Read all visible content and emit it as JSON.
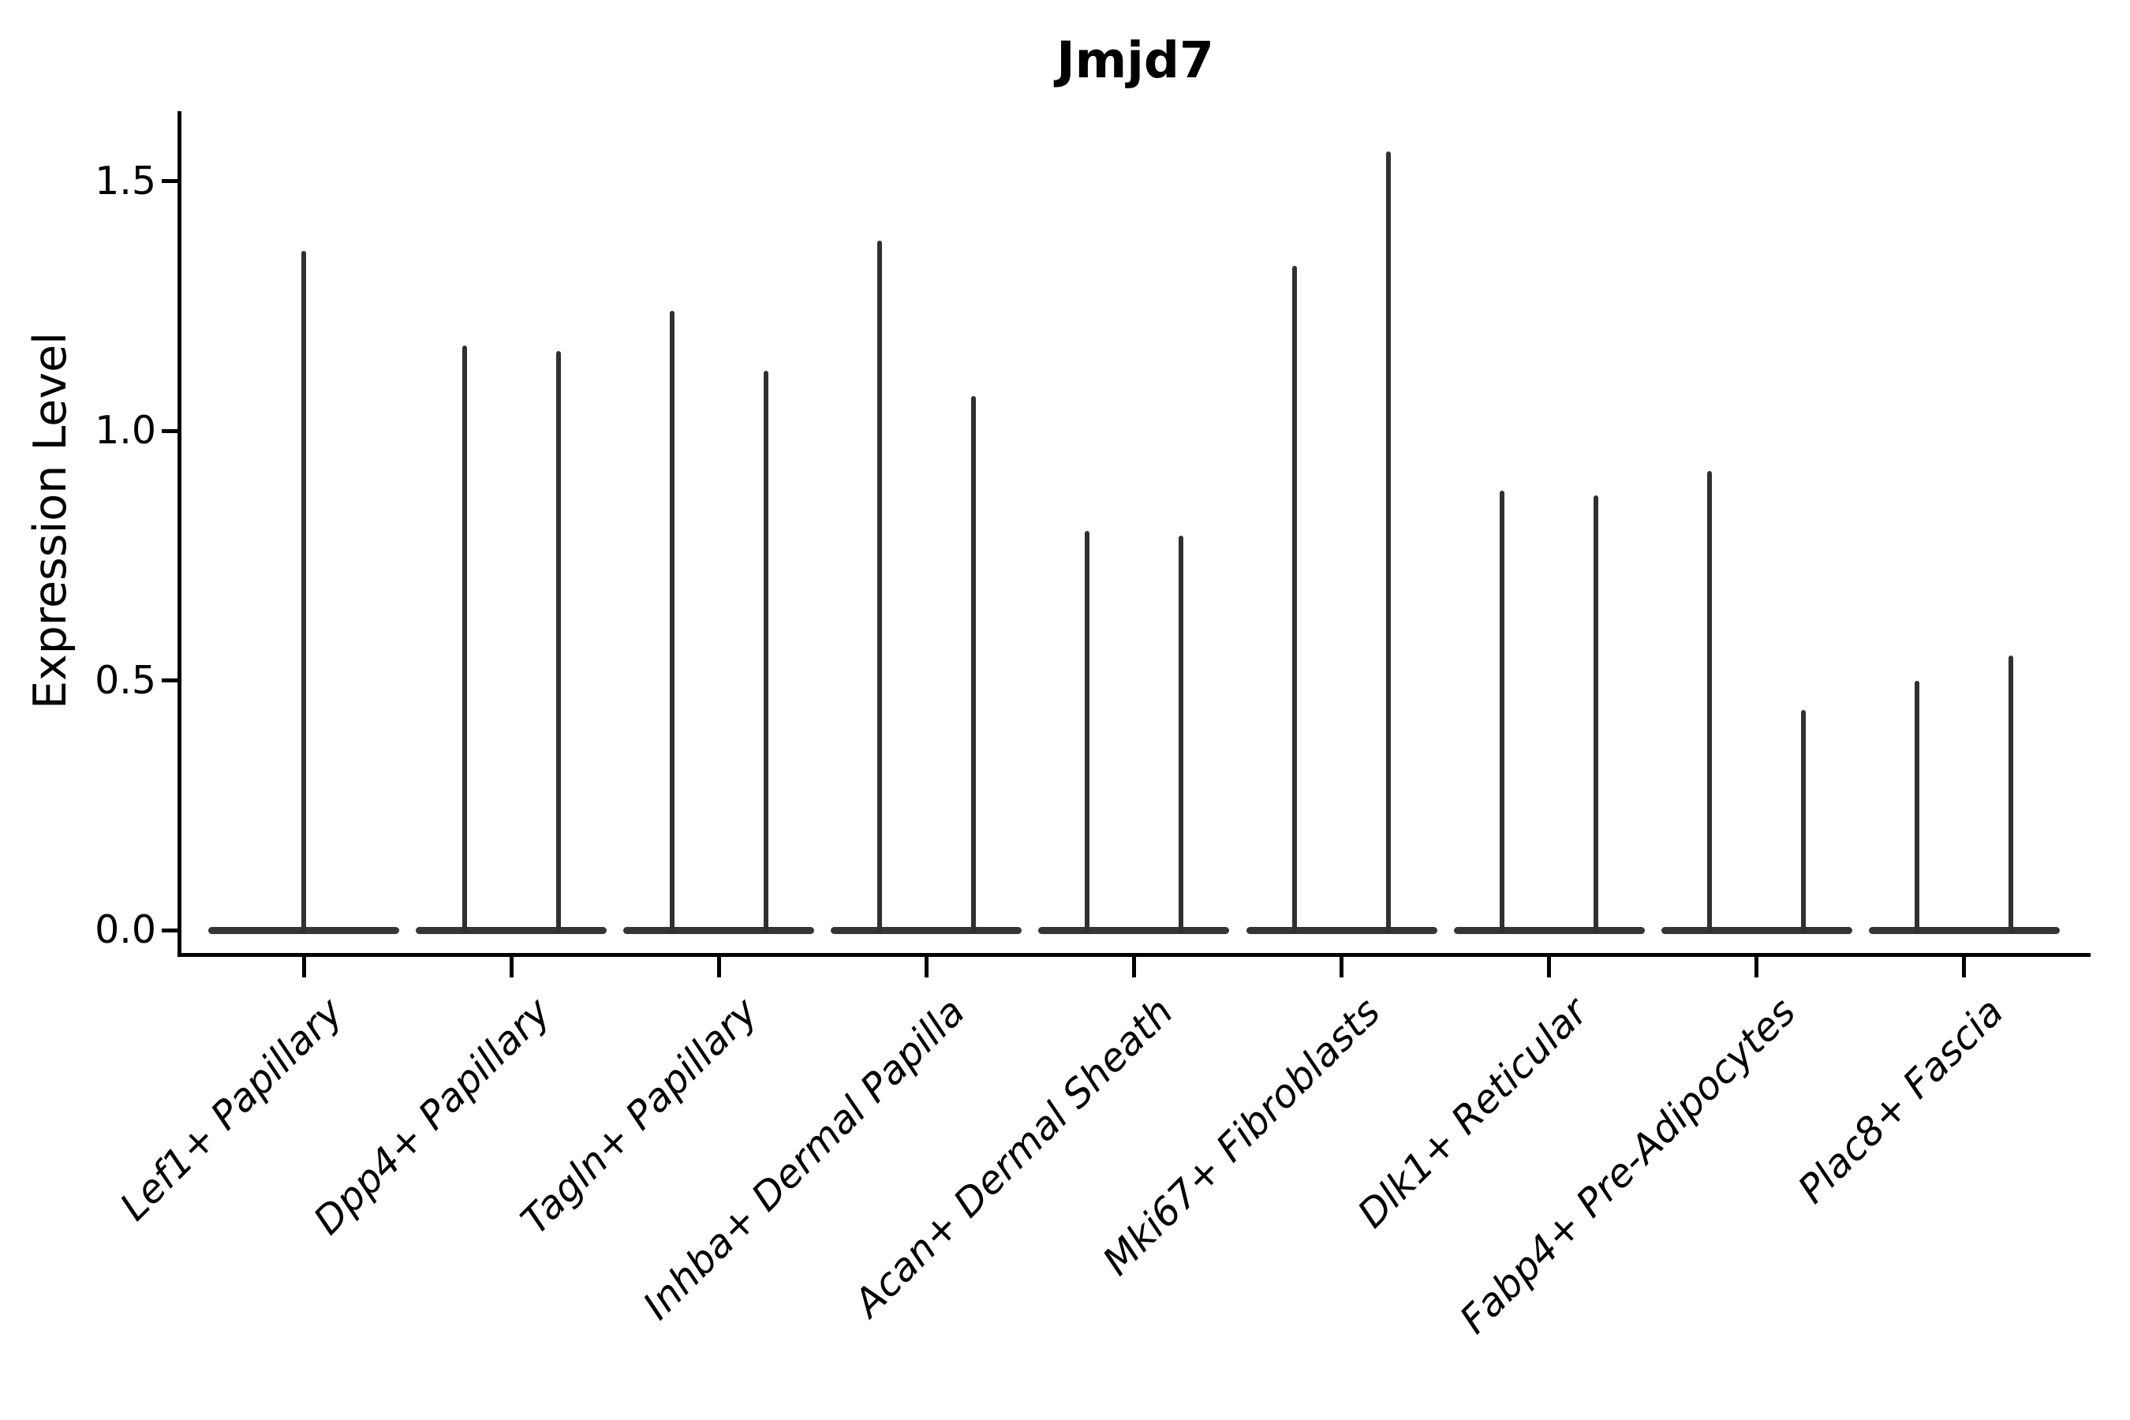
{
  "chart_data": {
    "type": "violin",
    "title": "Jmjd7",
    "ylabel": "Expression Level",
    "xlabel": "",
    "ytick_labels": [
      "0.0",
      "0.5",
      "1.0",
      "1.5"
    ],
    "ytick_values": [
      0.0,
      0.5,
      1.0,
      1.5
    ],
    "ylim": [
      -0.06,
      1.64
    ],
    "grid": false,
    "legend": "none",
    "style_notes": {
      "violin_shape": "thin vertical spike with flat wide base at zero expression",
      "violin_color": "#303030",
      "axis_color": "#000000",
      "background": "#ffffff",
      "xtick_label_style": "italic, rotated 45 degrees, right-anchored"
    },
    "categories": [
      "Lef1+ Papillary",
      "Dpp4+ Papillary",
      "Tagln+ Papillary",
      "Inhba+ Dermal Papilla",
      "Acan+ Dermal Sheath",
      "Mki67+ Fibroblasts",
      "Dlk1+ Reticular",
      "Fabp4+ Pre-Adipocytes",
      "Plac8+ Fascia"
    ],
    "groups": [
      {
        "label": "Lef1+ Papillary",
        "violin_maxima": [
          1.36
        ]
      },
      {
        "label": "Dpp4+ Papillary",
        "violin_maxima": [
          1.17,
          1.16
        ]
      },
      {
        "label": "Tagln+ Papillary",
        "violin_maxima": [
          1.24,
          1.12
        ]
      },
      {
        "label": "Inhba+ Dermal Papilla",
        "violin_maxima": [
          1.38,
          1.07
        ]
      },
      {
        "label": "Acan+ Dermal Sheath",
        "violin_maxima": [
          0.8,
          0.79
        ]
      },
      {
        "label": "Mki67+ Fibroblasts",
        "violin_maxima": [
          1.33,
          1.56
        ]
      },
      {
        "label": "Dlk1+ Reticular",
        "violin_maxima": [
          0.88,
          0.87
        ]
      },
      {
        "label": "Fabp4+ Pre-Adipocytes",
        "violin_maxima": [
          0.92,
          0.44
        ]
      },
      {
        "label": "Plac8+ Fascia",
        "violin_maxima": [
          0.5,
          0.55
        ]
      }
    ]
  }
}
